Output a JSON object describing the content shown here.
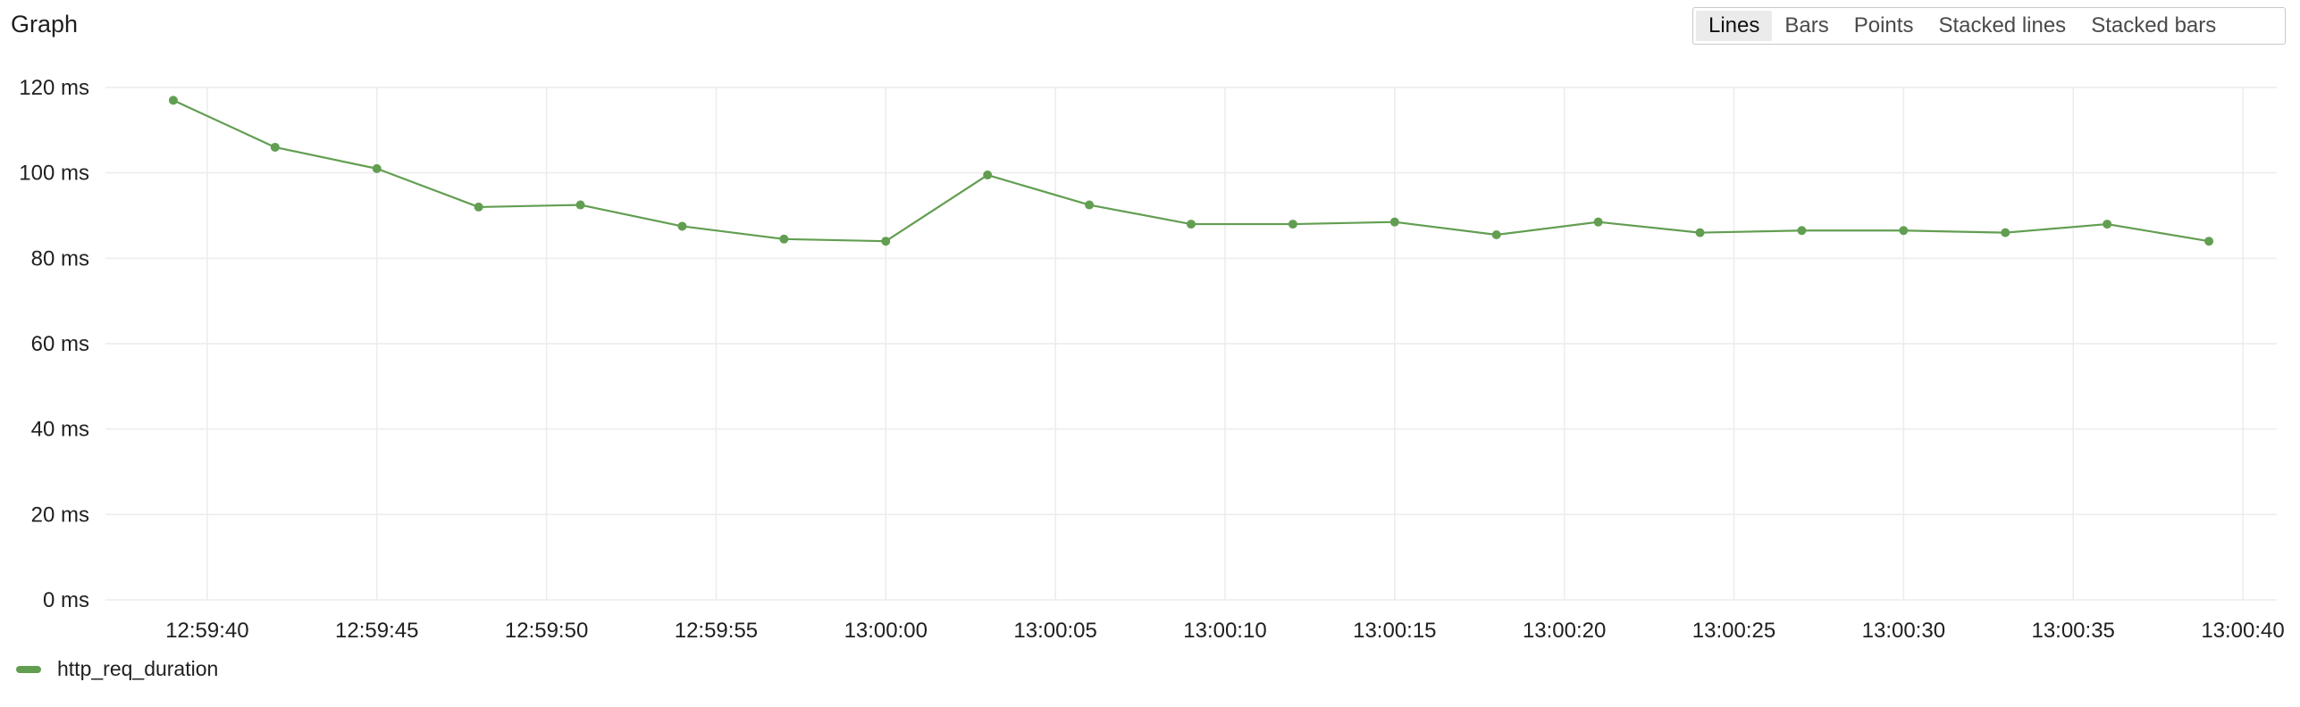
{
  "panel": {
    "title": "Graph"
  },
  "view_modes": [
    {
      "label": "Lines",
      "active": true
    },
    {
      "label": "Bars",
      "active": false
    },
    {
      "label": "Points",
      "active": false
    },
    {
      "label": "Stacked lines",
      "active": false
    },
    {
      "label": "Stacked bars",
      "active": false
    }
  ],
  "colors": {
    "series": "#629e51",
    "grid": "#ececec"
  },
  "chart_data": {
    "type": "line",
    "title": "",
    "xlabel": "",
    "ylabel": "",
    "ylim": [
      0,
      120
    ],
    "y_ticks": [
      {
        "value": 120,
        "label": "120 ms"
      },
      {
        "value": 100,
        "label": "100 ms"
      },
      {
        "value": 80,
        "label": "80 ms"
      },
      {
        "value": 60,
        "label": "60 ms"
      },
      {
        "value": 40,
        "label": "40 ms"
      },
      {
        "value": 20,
        "label": "20 ms"
      },
      {
        "value": 0,
        "label": "0 ms"
      }
    ],
    "x_ticks": [
      "12:59:40",
      "12:59:45",
      "12:59:50",
      "12:59:55",
      "13:00:00",
      "13:00:05",
      "13:00:10",
      "13:00:15",
      "13:00:20",
      "13:00:25",
      "13:00:30",
      "13:00:35",
      "13:00:40"
    ],
    "xlim": [
      "12:59:37",
      "13:00:41"
    ],
    "grid": true,
    "legend_position": "bottom-left",
    "series": [
      {
        "name": "http_req_duration",
        "x": [
          "12:59:39",
          "12:59:42",
          "12:59:45",
          "12:59:48",
          "12:59:51",
          "12:59:54",
          "12:59:57",
          "13:00:00",
          "13:00:03",
          "13:00:06",
          "13:00:09",
          "13:00:12",
          "13:00:15",
          "13:00:18",
          "13:00:21",
          "13:00:24",
          "13:00:27",
          "13:00:30",
          "13:00:33",
          "13:00:36",
          "13:00:39"
        ],
        "values": [
          117,
          106,
          101,
          92,
          92.5,
          87.5,
          84.5,
          84,
          99.5,
          92.5,
          88,
          88,
          88.5,
          85.5,
          88.5,
          86,
          86.5,
          86.5,
          86,
          88,
          84
        ]
      }
    ]
  }
}
